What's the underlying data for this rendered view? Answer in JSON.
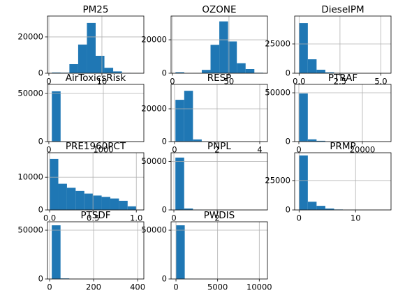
{
  "chart_data": [
    {
      "type": "histogram",
      "title": "PM25",
      "bins": [
        0.57,
        2.22,
        3.87,
        5.52,
        7.17,
        8.82,
        10.47,
        12.12,
        13.77,
        15.42,
        17.07
      ],
      "values": [
        400,
        300,
        5000,
        15800,
        27700,
        9600,
        3000,
        1000,
        200,
        50
      ],
      "xlim": [
        -0.26,
        17.9
      ],
      "ylim": [
        0,
        31500
      ],
      "xticks": [
        0,
        10
      ],
      "yticks": [
        0,
        20000
      ],
      "color": "#1f77b4",
      "grid": true
    },
    {
      "type": "histogram",
      "title": "OZONE",
      "bins": [
        2.7,
        10.45,
        18.2,
        25.95,
        33.7,
        41.45,
        49.2,
        56.95,
        64.7,
        72.45,
        80.2
      ],
      "values": [
        600,
        0,
        100,
        2000,
        17000,
        31000,
        19000,
        6000,
        2500,
        300
      ],
      "xlim": [
        -1.2,
        84
      ],
      "ylim": [
        0,
        34200
      ],
      "xticks": [
        0,
        50
      ],
      "yticks": [
        0,
        20000
      ],
      "color": "#1f77b4",
      "grid": true
    },
    {
      "type": "histogram",
      "title": "DieselPM",
      "bins": [
        0,
        0.535,
        1.07,
        1.605,
        2.14,
        2.675,
        3.21,
        3.745,
        4.28,
        4.815,
        5.35
      ],
      "values": [
        42800,
        11900,
        3000,
        800,
        300,
        100,
        50,
        20,
        10,
        5
      ],
      "xlim": [
        -0.27,
        5.62
      ],
      "ylim": [
        0,
        48800
      ],
      "xticks": [
        {
          "value": 0,
          "label": "0.0"
        },
        {
          "value": 2.5,
          "label": "2.5"
        },
        {
          "value": 5,
          "label": "5.0"
        }
      ],
      "yticks": [
        0,
        25000
      ],
      "color": "#1f77b4",
      "grid": true
    },
    {
      "type": "histogram",
      "title": "AirToxicsRisk",
      "bins": [
        55,
        215.9,
        376.8,
        537.7,
        698.6,
        859.5,
        1020.4,
        1181.3,
        1342.2,
        1503.1,
        1664
      ],
      "values": [
        52200,
        300,
        50,
        10,
        5,
        3,
        2,
        1,
        0,
        1
      ],
      "xlim": [
        -25,
        1744
      ],
      "ylim": [
        0,
        59400
      ],
      "xticks": [
        0,
        1000
      ],
      "yticks": [
        0,
        50000
      ],
      "color": "#1f77b4",
      "grid": true
    },
    {
      "type": "histogram",
      "title": "RESP",
      "bins": [
        0.045,
        0.456,
        0.867,
        1.278,
        1.689,
        2.1,
        2.511,
        2.922,
        3.333,
        3.744,
        4.155
      ],
      "values": [
        25500,
        31000,
        1300,
        200,
        50,
        20,
        10,
        5,
        2,
        1
      ],
      "xlim": [
        -0.16,
        4.36
      ],
      "ylim": [
        0,
        34900
      ],
      "xticks": [
        0,
        2,
        4
      ],
      "yticks": [
        0,
        20000
      ],
      "color": "#1f77b4",
      "grid": true
    },
    {
      "type": "histogram",
      "title": "PTRAF",
      "bins": [
        60,
        2817,
        5574,
        8331,
        11088,
        13845,
        16602,
        19359,
        22116,
        24873,
        27630
      ],
      "values": [
        49300,
        2300,
        800,
        300,
        100,
        50,
        20,
        10,
        5,
        2
      ],
      "xlim": [
        -1319,
        29010
      ],
      "ylim": [
        0,
        58600
      ],
      "xticks": [
        0,
        20000
      ],
      "yticks": [
        0,
        50000
      ],
      "color": "#1f77b4",
      "grid": true
    },
    {
      "type": "histogram",
      "title": "PRE1960PCT",
      "bins": [
        0,
        0.1,
        0.2,
        0.3,
        0.4,
        0.5,
        0.6,
        0.7,
        0.8,
        0.9,
        1
      ],
      "values": [
        15600,
        8000,
        6800,
        5800,
        5000,
        4400,
        4000,
        3500,
        2800,
        1100
      ],
      "xlim": [
        -0.025,
        1.087
      ],
      "ylim": [
        0,
        17500
      ],
      "xticks": [
        {
          "value": 0,
          "label": "0.0"
        },
        {
          "value": 0.5,
          "label": "0.5"
        },
        {
          "value": 1,
          "label": "1.0"
        }
      ],
      "yticks": [
        0,
        10000
      ],
      "color": "#1f77b4",
      "grid": true
    },
    {
      "type": "histogram",
      "title": "PNPL",
      "bins": [
        0.07,
        0.475,
        0.88,
        1.285,
        1.69,
        2.095,
        2.5,
        2.905,
        3.31,
        3.715,
        4.12
      ],
      "values": [
        54000,
        1500,
        300,
        100,
        30,
        10,
        5,
        2,
        1,
        1
      ],
      "xlim": [
        -0.13,
        4.32
      ],
      "ylim": [
        0,
        59000
      ],
      "xticks": [
        0,
        2
      ],
      "yticks": [
        0,
        50000
      ],
      "color": "#1f77b4",
      "grid": true
    },
    {
      "type": "histogram",
      "title": "PRMP",
      "bins": [
        0,
        1.55,
        3.1,
        4.65,
        6.2,
        7.75,
        9.3,
        10.85,
        12.4,
        13.95,
        15.5
      ],
      "values": [
        46400,
        7000,
        3500,
        1200,
        400,
        200,
        100,
        50,
        20,
        10
      ],
      "xlim": [
        -0.78,
        16.28
      ],
      "ylim": [
        0,
        48700
      ],
      "xticks": [
        0,
        10
      ],
      "yticks": [
        0,
        25000
      ],
      "color": "#1f77b4",
      "grid": true
    },
    {
      "type": "histogram",
      "title": "PTSDF",
      "bins": [
        10,
        49.8,
        89.6,
        129.4,
        169.2,
        209,
        248.8,
        288.6,
        328.4,
        368.2,
        408
      ],
      "values": [
        55000,
        600,
        100,
        30,
        10,
        5,
        3,
        2,
        1,
        1
      ],
      "xlim": [
        -9.5,
        428.3
      ],
      "ylim": [
        0,
        58600
      ],
      "xticks": [
        0,
        200,
        400
      ],
      "yticks": [
        0,
        50000
      ],
      "color": "#1f77b4",
      "grid": true
    },
    {
      "type": "histogram",
      "title": "PWDIS",
      "bins": [
        0,
        1052,
        2104,
        3156,
        4208,
        5260,
        6312,
        7364,
        8416,
        9468,
        10520
      ],
      "values": [
        55000,
        300,
        80,
        30,
        10,
        5,
        3,
        2,
        1,
        1
      ],
      "xlim": [
        -590,
        10980
      ],
      "ylim": [
        0,
        58600
      ],
      "xticks": [
        0,
        5000,
        10000
      ],
      "yticks": [
        0,
        50000
      ],
      "color": "#1f77b4",
      "grid": true
    }
  ]
}
